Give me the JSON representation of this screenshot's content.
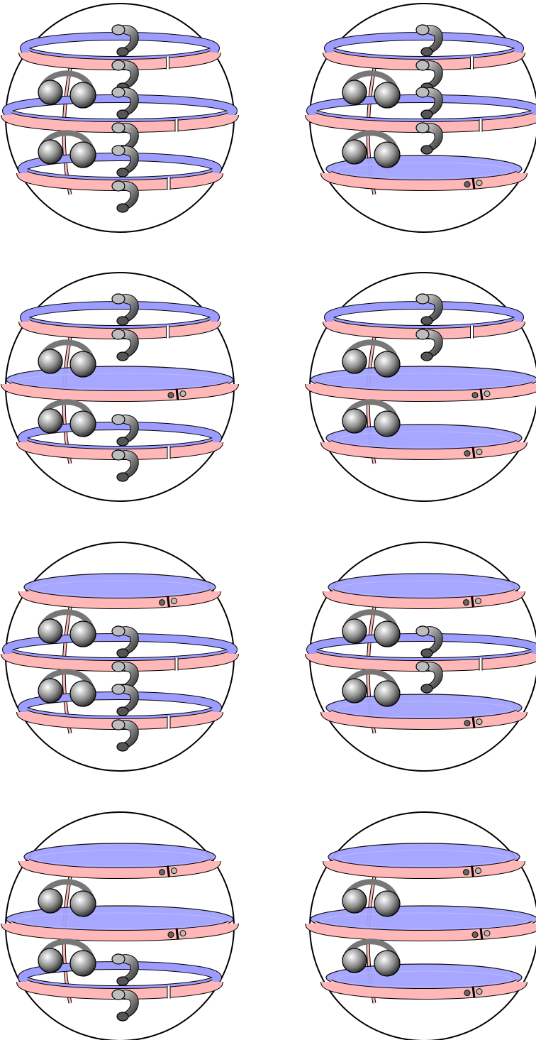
{
  "colors": {
    "background": "#ffffff",
    "outline": "#000000",
    "pink_band": "#ffb7b7",
    "blue_band": "#9d9dff",
    "blue_disk": "#a3a3ff",
    "blob_dark": "#111111",
    "blob_light": "#ffffff"
  },
  "icon_names": [
    "sphere-icon",
    "pink-band-icon",
    "blue-band-icon",
    "blue-disk-icon",
    "shaded-blob-icon",
    "gap-marker-icon",
    "curl-icon"
  ],
  "grid": {
    "rows": 4,
    "columns": 2
  },
  "panels": [
    {
      "id": "panel-1",
      "disks": [
        false,
        false,
        false
      ],
      "small_markers": [
        false,
        false,
        false
      ],
      "curls": [
        true,
        true,
        true
      ]
    },
    {
      "id": "panel-2",
      "disks": [
        false,
        false,
        true
      ],
      "small_markers": [
        false,
        false,
        true
      ],
      "curls": [
        true,
        true,
        false
      ]
    },
    {
      "id": "panel-3",
      "disks": [
        false,
        true,
        false
      ],
      "small_markers": [
        false,
        true,
        false
      ],
      "curls": [
        true,
        false,
        true
      ]
    },
    {
      "id": "panel-4",
      "disks": [
        false,
        true,
        true
      ],
      "small_markers": [
        false,
        true,
        true
      ],
      "curls": [
        true,
        false,
        false
      ]
    },
    {
      "id": "panel-5",
      "disks": [
        true,
        false,
        false
      ],
      "small_markers": [
        true,
        false,
        false
      ],
      "curls": [
        false,
        true,
        true
      ]
    },
    {
      "id": "panel-6",
      "disks": [
        true,
        false,
        true
      ],
      "small_markers": [
        true,
        false,
        true
      ],
      "curls": [
        false,
        true,
        false
      ]
    },
    {
      "id": "panel-7",
      "disks": [
        true,
        true,
        false
      ],
      "small_markers": [
        true,
        true,
        false
      ],
      "curls": [
        false,
        false,
        true
      ]
    },
    {
      "id": "panel-8",
      "disks": [
        true,
        true,
        true
      ],
      "small_markers": [
        true,
        true,
        true
      ],
      "curls": [
        false,
        false,
        false
      ]
    }
  ]
}
